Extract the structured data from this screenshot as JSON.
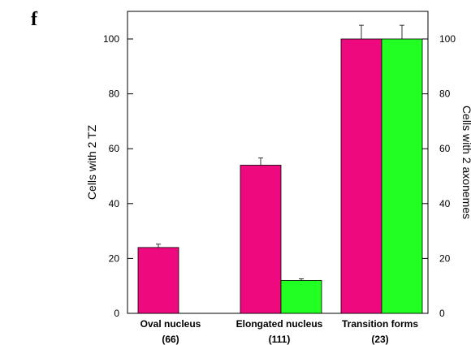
{
  "panel_letter": "f",
  "chart_data": {
    "type": "bar",
    "categories": [
      "Oval nucleus",
      "Elongated nucleus",
      "Transition forms"
    ],
    "category_counts": [
      "(66)",
      "(111)",
      "(23)"
    ],
    "ylabel_left": "Cells with 2 TZ",
    "ylabel_right": "Cells with 2 axonemes",
    "ylim": [
      0,
      110
    ],
    "yticks": [
      0,
      20,
      40,
      60,
      80,
      100
    ],
    "grid": false,
    "series": [
      {
        "color": "#ee0a7e",
        "values": [
          24,
          54,
          100
        ],
        "errors": [
          1.2,
          2.6,
          5
        ]
      },
      {
        "color": "#22ff22",
        "values": [
          0,
          12,
          100
        ],
        "errors": [
          0,
          0.6,
          5
        ]
      }
    ]
  }
}
